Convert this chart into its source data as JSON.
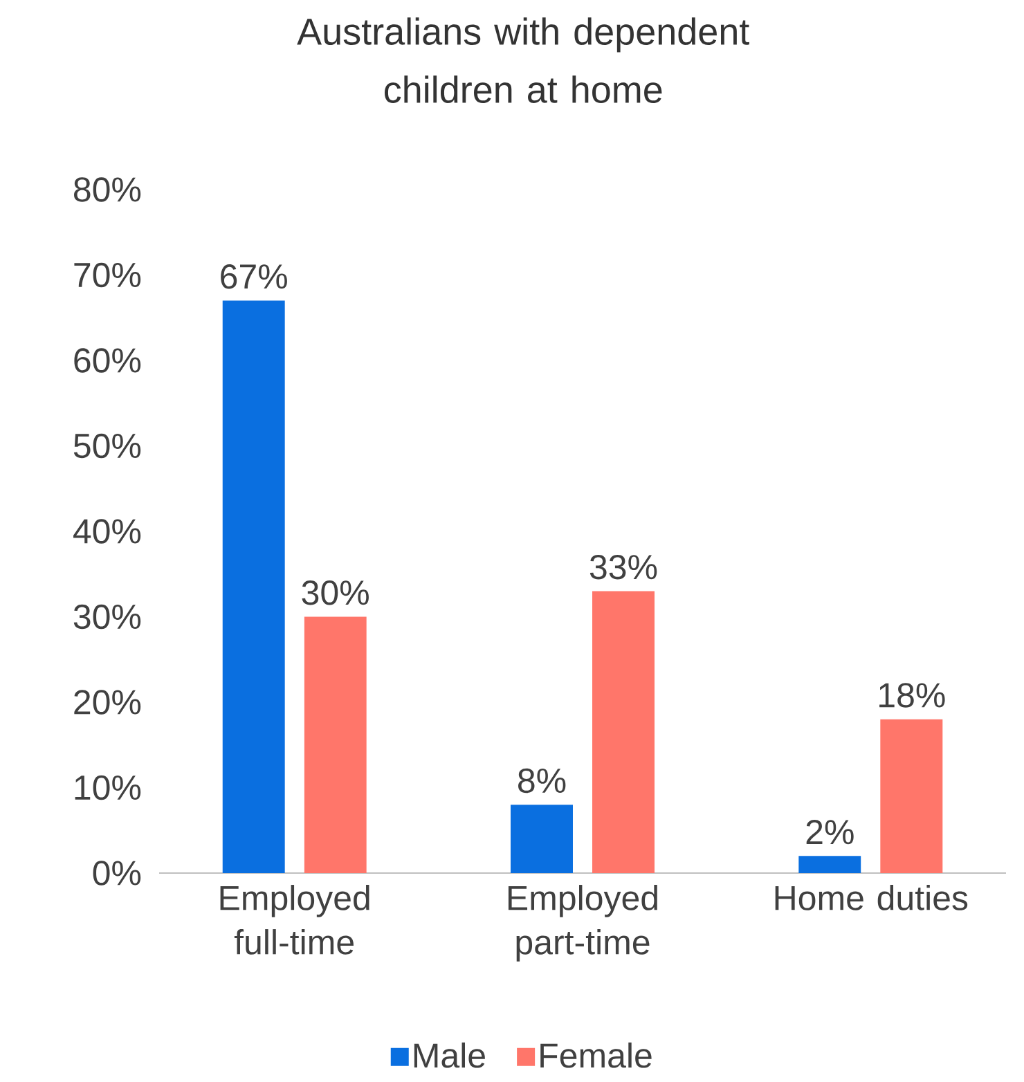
{
  "chart_data": {
    "type": "bar",
    "title": "Australians with dependent children at home",
    "categories": [
      "Employed full-time",
      "Employed part-time",
      "Home duties"
    ],
    "series": [
      {
        "name": "Male",
        "color": "#0a6fe0",
        "values": [
          67,
          8,
          2
        ],
        "value_labels": [
          "67%",
          "8%",
          "2%"
        ]
      },
      {
        "name": "Female",
        "color": "#ff766a",
        "values": [
          30,
          33,
          18
        ],
        "value_labels": [
          "30%",
          "33%",
          "18%"
        ]
      }
    ],
    "ylim": [
      0,
      80
    ],
    "yticks": [
      {
        "value": 0,
        "label": "0%"
      },
      {
        "value": 10,
        "label": "10%"
      },
      {
        "value": 20,
        "label": "20%"
      },
      {
        "value": 30,
        "label": "30%"
      },
      {
        "value": 40,
        "label": "40%"
      },
      {
        "value": 50,
        "label": "50%"
      },
      {
        "value": 60,
        "label": "60%"
      },
      {
        "value": 70,
        "label": "70%"
      },
      {
        "value": 80,
        "label": "80%"
      }
    ],
    "grid": false,
    "legend": "bottom"
  }
}
